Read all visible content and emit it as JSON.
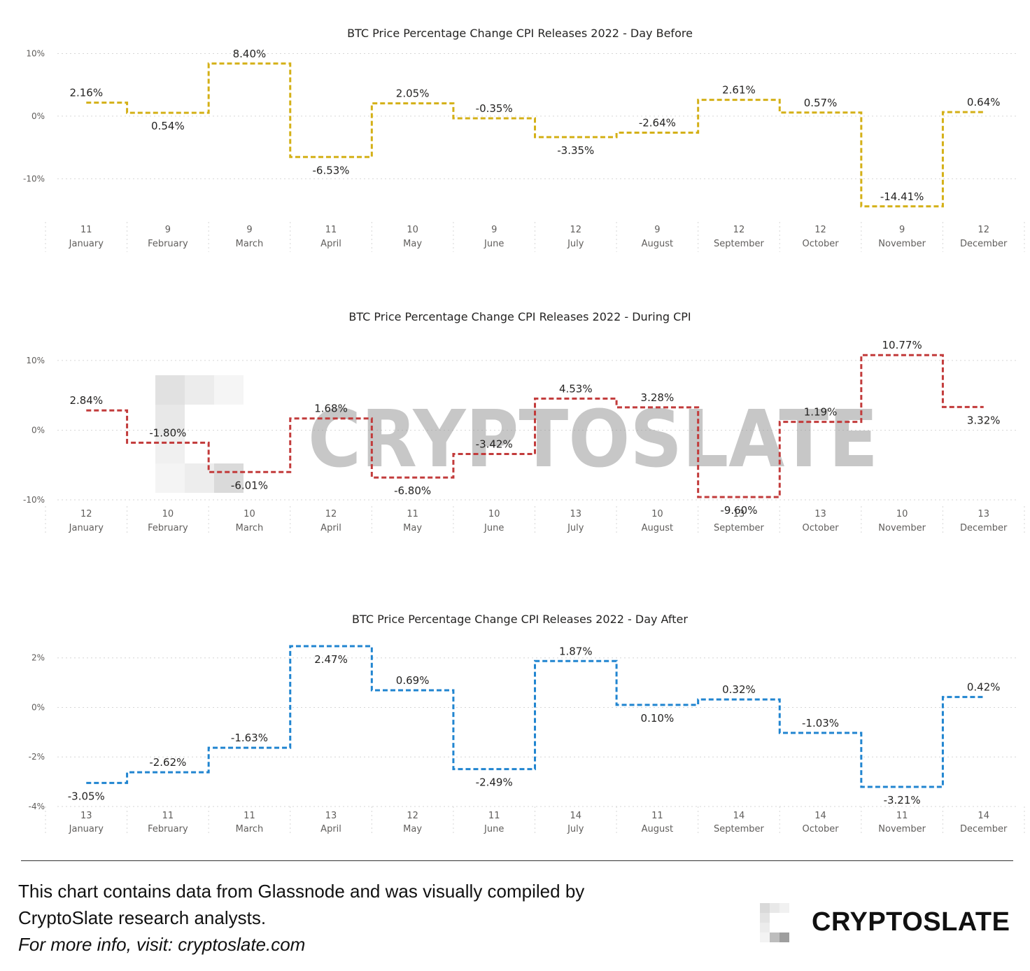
{
  "chart_data": [
    {
      "type": "line",
      "title": "BTC Price Percentage Change CPI Releases 2022 - Day Before",
      "color": "#d4b017",
      "y_ticks": [
        "10%",
        "0%",
        "-10%"
      ],
      "y_tick_values": [
        10,
        0,
        -10
      ],
      "ylim": [
        -16,
        10.5
      ],
      "x_days": [
        "11",
        "9",
        "9",
        "11",
        "10",
        "9",
        "12",
        "9",
        "12",
        "12",
        "9",
        "12"
      ],
      "x_months": [
        "January",
        "February",
        "March",
        "April",
        "May",
        "June",
        "July",
        "August",
        "September",
        "October",
        "November",
        "December"
      ],
      "values": [
        2.16,
        0.54,
        8.4,
        -6.53,
        2.05,
        -0.35,
        -3.35,
        -2.64,
        2.61,
        0.57,
        -14.41,
        0.64
      ],
      "labels": [
        "2.16%",
        "0.54%",
        "8.40%",
        "-6.53%",
        "2.05%",
        "-0.35%",
        "-3.35%",
        "-2.64%",
        "2.61%",
        "0.57%",
        "-14.41%",
        "0.64%"
      ],
      "grid": true
    },
    {
      "type": "line",
      "title": "BTC Price Percentage Change CPI Releases 2022 - During CPI",
      "color": "#c23b3b",
      "y_ticks": [
        "10%",
        "0%",
        "-10%"
      ],
      "y_tick_values": [
        10,
        0,
        -10
      ],
      "ylim": [
        -10.6,
        12
      ],
      "x_days": [
        "12",
        "10",
        "10",
        "12",
        "11",
        "10",
        "13",
        "10",
        "13",
        "13",
        "10",
        "13"
      ],
      "x_months": [
        "January",
        "February",
        "March",
        "April",
        "May",
        "June",
        "July",
        "August",
        "September",
        "October",
        "November",
        "December"
      ],
      "values": [
        2.84,
        -1.8,
        -6.01,
        1.68,
        -6.8,
        -3.42,
        4.53,
        3.28,
        -9.6,
        1.19,
        10.77,
        3.32
      ],
      "labels": [
        "2.84%",
        "-1.80%",
        "-6.01%",
        "1.68%",
        "-6.80%",
        "-3.42%",
        "4.53%",
        "3.28%",
        "-9.60%",
        "1.19%",
        "10.77%",
        "3.32%"
      ],
      "grid": true
    },
    {
      "type": "line",
      "title": "BTC Price Percentage Change CPI Releases 2022 - Day After",
      "color": "#2185d0",
      "y_ticks": [
        "2%",
        "0%",
        "-2%",
        "-4%"
      ],
      "y_tick_values": [
        2,
        0,
        -2,
        -4
      ],
      "ylim": [
        -4,
        2.5
      ],
      "x_days": [
        "13",
        "11",
        "11",
        "13",
        "12",
        "11",
        "14",
        "11",
        "14",
        "14",
        "11",
        "14"
      ],
      "x_months": [
        "January",
        "February",
        "March",
        "April",
        "May",
        "June",
        "July",
        "August",
        "September",
        "October",
        "November",
        "December"
      ],
      "values": [
        -3.05,
        -2.62,
        -1.63,
        2.47,
        0.69,
        -2.49,
        1.87,
        0.1,
        0.32,
        -1.03,
        -3.21,
        0.42
      ],
      "labels": [
        "-3.05%",
        "-2.62%",
        "-1.63%",
        "2.47%",
        "0.69%",
        "-2.49%",
        "1.87%",
        "0.10%",
        "0.32%",
        "-1.03%",
        "-3.21%",
        "0.42%"
      ],
      "grid": true
    }
  ],
  "watermark": "CRYPTOSLATE",
  "footer": {
    "line1": "This chart contains data from Glassnode and was visually compiled by",
    "line2": "CryptoSlate research analysts.",
    "line3": "For more info, visit: cryptoslate.com"
  },
  "brand": {
    "name": "CRYPTOSLATE",
    "icon": "cryptoslate-logo-icon"
  }
}
